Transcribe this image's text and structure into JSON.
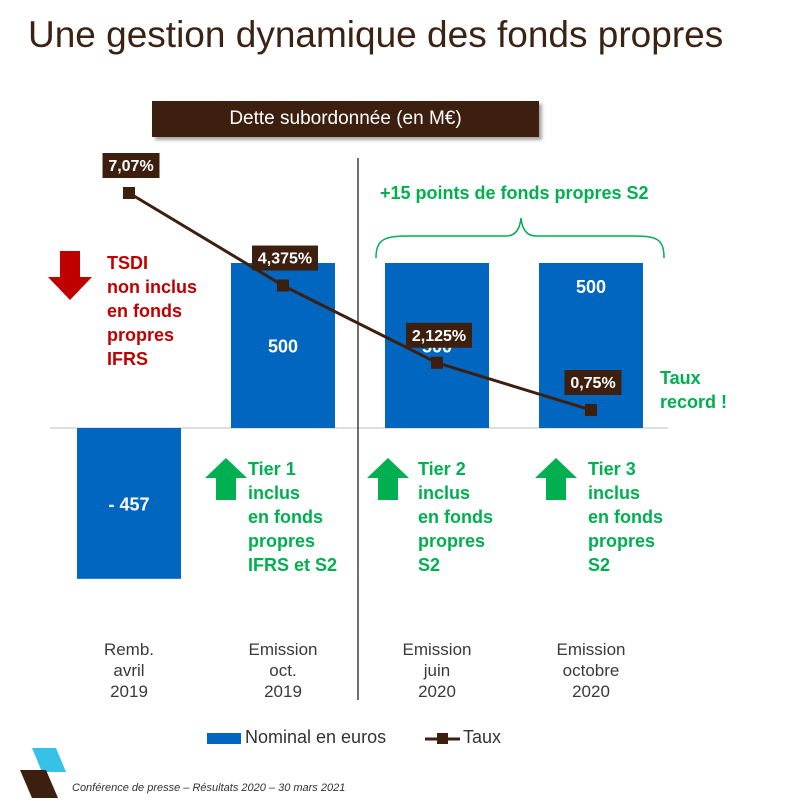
{
  "title": "Une gestion dynamique des fonds propres",
  "box_title": "Dette subordonnée (en M€)",
  "annotations": {
    "tsdi": "TSDI\nnon inclus\nen fonds\npropres\nIFRS",
    "points": "+15 points de fonds propres S2",
    "taux_record": "Taux\nrecord !",
    "tier1": "Tier 1\ninclus\nen fonds\npropres\nIFRS et S2",
    "tier2": "Tier 2\ninclus\nen fonds\npropres\nS2",
    "tier3": "Tier 3\ninclus\nen fonds\npropres\nS2"
  },
  "legend": {
    "nominal": "Nominal en euros",
    "taux": "Taux"
  },
  "footer": "Conférence de presse – Résultats 2020 – 30 mars 2021",
  "colors": {
    "bar": "#0066bf",
    "line": "#3d1f10",
    "red": "#c00000",
    "green": "#00b050"
  },
  "chart_data": {
    "type": "bar",
    "categories": [
      [
        "Remb.",
        "avril",
        "2019"
      ],
      [
        "Emission",
        "oct.",
        "2019"
      ],
      [
        "Emission",
        "juin",
        "2020"
      ],
      [
        "Emission",
        "octobre",
        "2020"
      ]
    ],
    "series": [
      {
        "name": "Nominal en euros",
        "type": "bar",
        "values": [
          -457,
          500,
          500,
          500
        ],
        "labels": [
          "- 457",
          "500",
          "500",
          "500"
        ]
      },
      {
        "name": "Taux",
        "type": "line",
        "values": [
          7.07,
          4.375,
          2.125,
          0.75
        ],
        "labels": [
          "7,07%",
          "4,375%",
          "2,125%",
          "0,75%"
        ]
      }
    ]
  }
}
